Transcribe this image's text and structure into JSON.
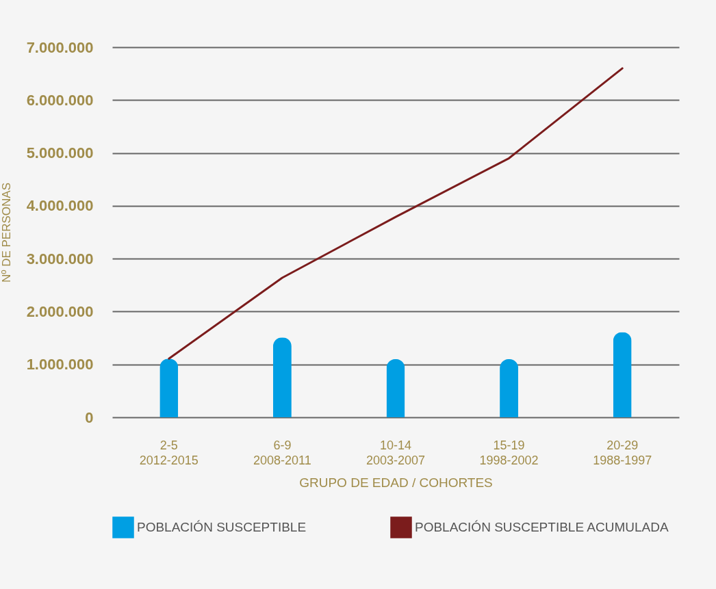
{
  "chart_data": {
    "type": "bar",
    "xlabel": "GRUPO DE EDAD / COHORTES",
    "ylabel": "Nº DE PERSONAS",
    "categories": [
      "2-5\n2012-2015",
      "6-9\n2008-2011",
      "10-14\n2003-2007",
      "15-19\n1998-2002",
      "20-29\n1988-1997"
    ],
    "series": [
      {
        "name": "POBLACIÓN SUSCEPTIBLE",
        "color": "#009fe3",
        "values": [
          1110000,
          1510000,
          1100000,
          1100000,
          1610000
        ]
      },
      {
        "name": "POBLACIÓN SUSCEPTIBLE ACUMULADA",
        "type": "line",
        "color": "#7b1c1c",
        "values": [
          1110000,
          2640000,
          3790000,
          4900000,
          6600000
        ]
      }
    ],
    "ylim": [
      0,
      7000000
    ],
    "yticks": [
      {
        "value": 0,
        "label": "0"
      },
      {
        "value": 1000000,
        "label": "1.000.000"
      },
      {
        "value": 2000000,
        "label": "2.000.000"
      },
      {
        "value": 3000000,
        "label": "3.000.000"
      },
      {
        "value": 4000000,
        "label": "4.000.000"
      },
      {
        "value": 5000000,
        "label": "5.000.000"
      },
      {
        "value": 6000000,
        "label": "6.000.000"
      },
      {
        "value": 7000000,
        "label": "7.000.000"
      }
    ],
    "grid": "y",
    "legend": "bottom"
  }
}
